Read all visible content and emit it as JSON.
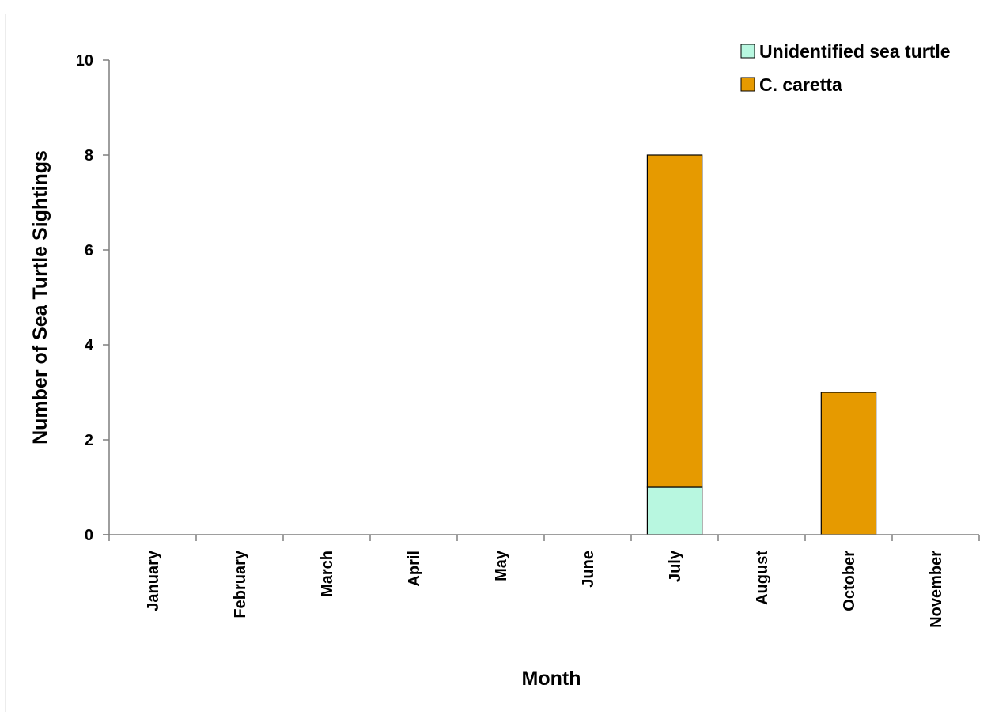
{
  "chart_data": {
    "type": "bar",
    "stacked": true,
    "categories": [
      "January",
      "February",
      "March",
      "April",
      "May",
      "June",
      "July",
      "August",
      "October",
      "November"
    ],
    "series": [
      {
        "name": "Unidentified sea turtle",
        "values": [
          0,
          0,
          0,
          0,
          0,
          0,
          1,
          0,
          0,
          0
        ],
        "color": "#b8f7e0"
      },
      {
        "name": "C. caretta",
        "values": [
          0,
          0,
          0,
          0,
          0,
          0,
          7,
          0,
          3,
          0
        ],
        "color": "#e69a00"
      }
    ],
    "xlabel": "Month",
    "ylabel": "Number of Sea Turtle Sightings",
    "ylim": [
      0,
      10
    ],
    "yticks": [
      0,
      2,
      4,
      6,
      8,
      10
    ],
    "legend_position": "top-right",
    "grid": false
  }
}
